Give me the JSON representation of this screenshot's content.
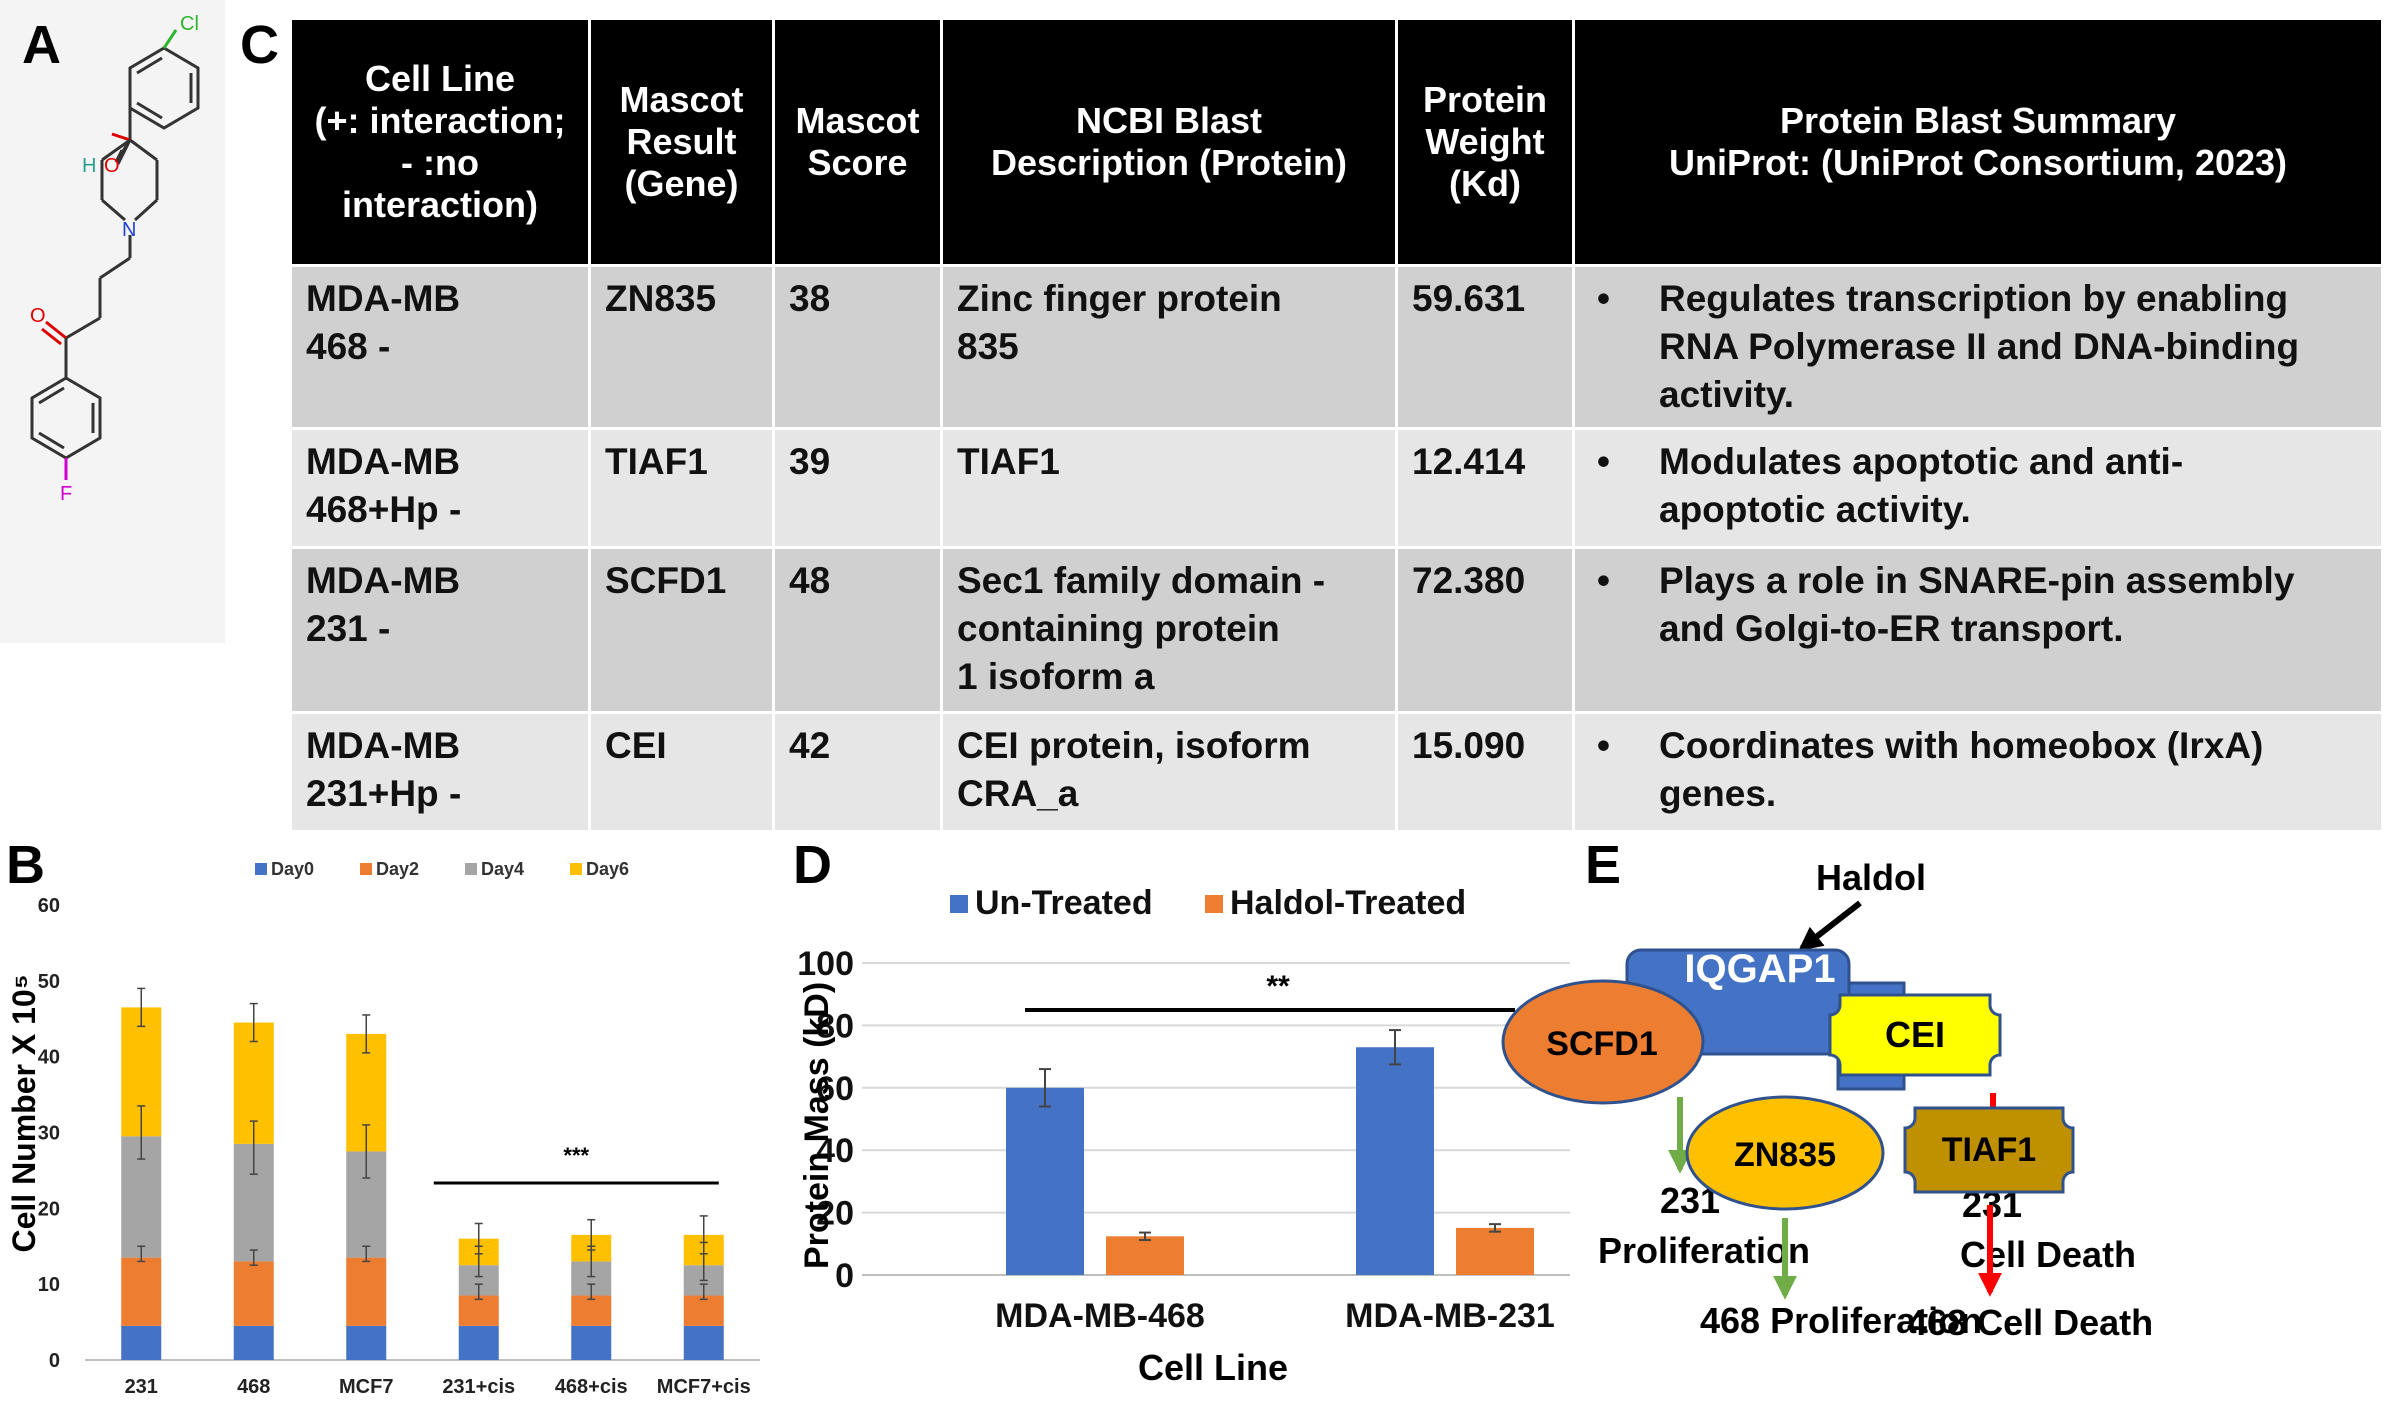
{
  "panels": {
    "A": {
      "letter": "A"
    },
    "B": {
      "letter": "B"
    },
    "C": {
      "letter": "C"
    },
    "D": {
      "letter": "D"
    },
    "E": {
      "letter": "E"
    }
  },
  "molecule": {
    "atoms": {
      "cl": "Cl",
      "h": "H",
      "o_hydroxyl": "O",
      "n": "N",
      "o_ketone": "O",
      "f": "F"
    }
  },
  "table": {
    "headers": [
      [
        "Cell Line",
        "(+: interaction;",
        "- :no",
        "interaction)"
      ],
      [
        "Mascot",
        "Result",
        "(Gene)"
      ],
      [
        "Mascot",
        "Score"
      ],
      [
        "NCBI Blast",
        "Description (Protein)"
      ],
      [
        "Protein",
        "Weight",
        "(Kd)"
      ],
      [
        "Protein Blast Summary",
        "UniProt: (UniProt Consortium, 2023)"
      ]
    ],
    "rows": [
      {
        "cell_line": [
          "MDA-MB",
          "468 -"
        ],
        "gene": "ZN835",
        "score": "38",
        "description": [
          "Zinc finger protein",
          "835"
        ],
        "weight": "59.631",
        "summary": [
          "Regulates transcription by enabling",
          "RNA Polymerase II and DNA-binding",
          "activity."
        ]
      },
      {
        "cell_line": [
          "MDA-MB",
          "468+Hp -"
        ],
        "gene": "TIAF1",
        "score": "39",
        "description": [
          "TIAF1"
        ],
        "weight": "12.414",
        "summary": [
          "Modulates apoptotic and anti-",
          "apoptotic activity."
        ]
      },
      {
        "cell_line": [
          "MDA-MB",
          "231 -"
        ],
        "gene": "SCFD1",
        "score": "48",
        "description": [
          "Sec1 family domain -",
          "containing protein",
          "1 isoform a"
        ],
        "weight": "72.380",
        "summary": [
          "Plays a role in SNARE-pin assembly",
          "and Golgi-to-ER transport."
        ]
      },
      {
        "cell_line": [
          "MDA-MB",
          "231+Hp -"
        ],
        "gene": "CEI",
        "score": "42",
        "description": [
          "CEI protein, isoform",
          "CRA_a"
        ],
        "weight": "15.090",
        "summary": [
          "Coordinates with homeobox (IrxA)",
          "genes."
        ]
      }
    ],
    "bullet": "•"
  },
  "chart_data": [
    {
      "id": "B",
      "type": "bar",
      "stacked": true,
      "categories": [
        "231",
        "468",
        "MCF7",
        "231+cis",
        "468+cis",
        "MCF7+cis"
      ],
      "series": [
        {
          "name": "Day0",
          "color": "#4472c4",
          "values": [
            4.5,
            4.5,
            4.5,
            4.5,
            4.5,
            4.5
          ]
        },
        {
          "name": "Day2",
          "color": "#ed7d31",
          "values": [
            9,
            8.5,
            9,
            4,
            4,
            4
          ]
        },
        {
          "name": "Day4",
          "color": "#a5a5a5",
          "values": [
            16,
            15.5,
            14,
            4,
            4.5,
            4
          ]
        },
        {
          "name": "Day6",
          "color": "#ffc000",
          "values": [
            17,
            16,
            15.5,
            3.5,
            3.5,
            4
          ]
        }
      ],
      "error_tops": [
        [
          14,
          13.5,
          14,
          9,
          9,
          9
        ],
        [
          30,
          28,
          27.5,
          13,
          13,
          13
        ],
        [
          46.5,
          44.5,
          43,
          16,
          16.5,
          16.5
        ]
      ],
      "error_sizes": [
        [
          1,
          1,
          1,
          1,
          1,
          1
        ],
        [
          3.5,
          3.5,
          3.5,
          2,
          2,
          2.5
        ],
        [
          2.5,
          2.5,
          2.5,
          2,
          2,
          2.5
        ]
      ],
      "ylabel": "Cell Number X 10⁵",
      "ylim": [
        0,
        60
      ],
      "yticks": [
        0,
        10,
        20,
        30,
        40,
        50,
        60
      ],
      "significance": "***",
      "legend_position": "top"
    },
    {
      "id": "D",
      "type": "bar",
      "categories": [
        "MDA-MB-468",
        "MDA-MB-231"
      ],
      "series": [
        {
          "name": "Un-Treated",
          "color": "#4472c4",
          "values": [
            60,
            73
          ],
          "errors": [
            6,
            5.5
          ]
        },
        {
          "name": "Haldol-Treated",
          "color": "#ed7d31",
          "values": [
            12.4,
            15.1
          ],
          "errors": [
            1.2,
            1.2
          ]
        }
      ],
      "xlabel": "Cell Line",
      "ylabel": "Protein Mass (kD)",
      "ylim": [
        0,
        100
      ],
      "yticks": [
        0,
        20,
        40,
        60,
        80,
        100
      ],
      "significance": "**",
      "grid": true,
      "legend_position": "top"
    }
  ],
  "diagram": {
    "haldol": "Haldol",
    "iqgap1": "IQGAP1",
    "scfd1": "SCFD1",
    "cei": "CEI",
    "zn835": "ZN835",
    "tiaf1": "TIAF1",
    "prolif231": [
      "231",
      "Proliferation"
    ],
    "death231": [
      "231",
      "Cell Death"
    ],
    "prolif468": "468 Proliferation",
    "death468": "468 Cell Death",
    "colors": {
      "iqgap1": "#4472c4",
      "scfd1": "#ed7d31",
      "cei": "#ffff00",
      "zn835": "#ffc000",
      "tiaf1": "#bf9000",
      "green_arrow": "#70ad47",
      "red_arrow": "#ff0000"
    }
  }
}
